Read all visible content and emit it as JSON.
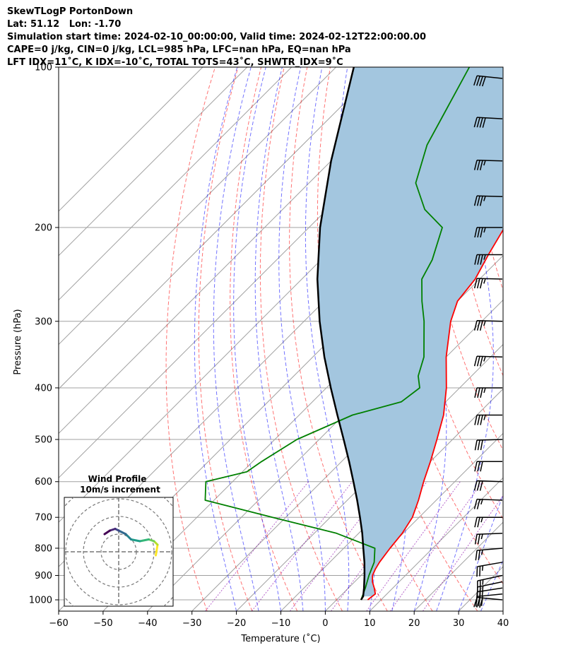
{
  "header": {
    "line1": "SkewTLogP PortonDown",
    "line2": "Lat: 51.12   Lon: -1.70",
    "line3": "Simulation start time: 2024-02-10_00:00:00, Valid time: 2024-02-12T22:00:00.00",
    "line4": "CAPE=0 j/kg, CIN=0 j/kg, LCL=985 hPa, LFC=nan hPa, EQ=nan hPa",
    "line5": "LFT IDX=11˚C, K IDX=-10˚C, TOTAL TOTS=43˚C, SHWTR_IDX=9˚C"
  },
  "inset": {
    "title": "Wind Profile",
    "subtitle": "10m/s increment"
  },
  "colors": {
    "temperature": "#ff0000",
    "dewpoint": "#008000",
    "parcel": "#000000",
    "cape_fill": "#a3c6df",
    "dry_adiabat": "#ff0000",
    "moist_adiabat": "#0000ff",
    "mixing_ratio": "#8800aa",
    "isotherm": "#a0a0a0"
  },
  "chart_data": {
    "type": "line",
    "xlabel": "Temperature (˚C)",
    "ylabel": "Pressure (hPa)",
    "xlim": [
      -60,
      40
    ],
    "ylim": [
      1050,
      100
    ],
    "yscale": "log",
    "grid": true,
    "x_ticks": [
      "−60",
      "−50",
      "−40",
      "−30",
      "−20",
      "−10",
      "0",
      "10",
      "20",
      "30",
      "40"
    ],
    "y_ticks": [
      "100",
      "200",
      "300",
      "400",
      "500",
      "600",
      "700",
      "800",
      "900",
      "1000"
    ],
    "series": [
      {
        "role": "temperature",
        "pressure": [
          1000,
          975,
          950,
          925,
          900,
          875,
          850,
          800,
          750,
          700,
          650,
          600,
          550,
          500,
          450,
          400,
          350,
          300,
          275,
          250,
          225,
          200,
          175,
          150,
          125,
          100
        ],
        "values": [
          7.0,
          7.4,
          5.8,
          4.0,
          2.6,
          1.8,
          1.2,
          0.4,
          -0.2,
          -1.5,
          -4.0,
          -7.0,
          -10.0,
          -13.5,
          -17.5,
          -23.0,
          -30.0,
          -37.0,
          -40.0,
          -41.0,
          -43.5,
          -46.0,
          -50.0,
          -52.0,
          -52.5,
          -53.5
        ]
      },
      {
        "role": "dewpoint",
        "pressure": [
          1000,
          950,
          900,
          850,
          800,
          750,
          700,
          650,
          600,
          575,
          550,
          500,
          450,
          425,
          400,
          380,
          350,
          300,
          275,
          250,
          230,
          200,
          185,
          165,
          140,
          100
        ],
        "values": [
          5.5,
          3.8,
          1.8,
          0.0,
          -3.0,
          -15.0,
          -33.0,
          -52.0,
          -56.0,
          -49.0,
          -48.0,
          -45.0,
          -38.0,
          -30.0,
          -29.0,
          -32.0,
          -35.0,
          -43.0,
          -48.0,
          -53.0,
          -55.0,
          -60.0,
          -68.0,
          -76.0,
          -82.0,
          -90.0
        ]
      },
      {
        "role": "parcel",
        "pressure": [
          1000,
          985,
          950,
          900,
          850,
          800,
          750,
          700,
          650,
          600,
          550,
          500,
          450,
          400,
          350,
          300,
          250,
          200,
          150,
          100
        ],
        "values": [
          5.5,
          5.2,
          3.5,
          0.8,
          -2.2,
          -5.6,
          -9.2,
          -13.3,
          -17.8,
          -22.8,
          -28.3,
          -34.5,
          -41.4,
          -49.0,
          -57.4,
          -66.5,
          -76.5,
          -87.5,
          -100.0,
          -116.0
        ]
      }
    ],
    "wind_barbs": {
      "pressure": [
        1000,
        975,
        950,
        925,
        900,
        850,
        800,
        750,
        700,
        650,
        600,
        550,
        500,
        450,
        400,
        350,
        300,
        250,
        225,
        200,
        175,
        150,
        125,
        105
      ],
      "u": [
        32,
        30,
        26,
        24,
        23,
        23,
        24,
        25,
        26,
        27,
        28,
        30,
        32,
        34,
        35,
        36,
        37,
        37,
        36,
        36,
        36,
        37,
        38,
        38
      ],
      "v": [
        -3,
        3,
        4,
        5,
        5,
        4,
        2,
        1,
        0,
        -1,
        -1,
        0,
        1,
        0,
        0,
        -1,
        -1,
        -1,
        0,
        0,
        -1,
        -1,
        -2,
        -4
      ]
    },
    "hodograph": {
      "ring_spacing": 10,
      "u": [
        21,
        22,
        20,
        17,
        12,
        7,
        4,
        0,
        -2,
        -5,
        -8
      ],
      "v": [
        -2,
        4,
        6,
        7,
        6,
        7,
        10,
        12,
        13,
        12,
        10
      ]
    }
  }
}
